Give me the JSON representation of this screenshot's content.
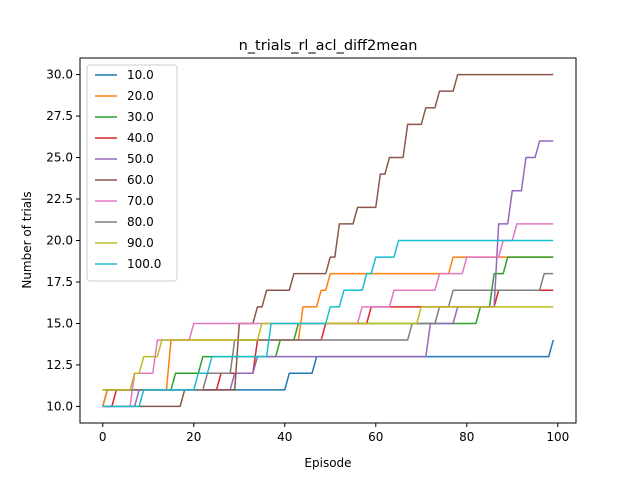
{
  "chart_data": {
    "type": "line",
    "title": "n_trials_rl_acl_diff2mean",
    "xlabel": "Episode",
    "ylabel": "Number of trials",
    "xlim": [
      -5,
      104
    ],
    "ylim": [
      9.0,
      31.0
    ],
    "xticks": [
      0,
      20,
      40,
      60,
      80,
      100
    ],
    "yticks": [
      10.0,
      12.5,
      15.0,
      17.5,
      20.0,
      22.5,
      25.0,
      27.5,
      30.0
    ],
    "legend_position": "upper-left",
    "grid": false,
    "series": [
      {
        "name": "10.0",
        "color": "#1f77b4",
        "points": [
          [
            0,
            10
          ],
          [
            1,
            11
          ],
          [
            18,
            11
          ],
          [
            19,
            11
          ],
          [
            40,
            11
          ],
          [
            41,
            12
          ],
          [
            46,
            12
          ],
          [
            47,
            13
          ],
          [
            71,
            13
          ],
          [
            72,
            13
          ],
          [
            98,
            13
          ],
          [
            99,
            14
          ]
        ]
      },
      {
        "name": "20.0",
        "color": "#ff7f0e",
        "points": [
          [
            0,
            10
          ],
          [
            1,
            11
          ],
          [
            14,
            11
          ],
          [
            15,
            14
          ],
          [
            43,
            14
          ],
          [
            44,
            16
          ],
          [
            47,
            16
          ],
          [
            48,
            17
          ],
          [
            49,
            17
          ],
          [
            50,
            18
          ],
          [
            76,
            18
          ],
          [
            77,
            19
          ],
          [
            83,
            19
          ],
          [
            84,
            19
          ],
          [
            99,
            19
          ]
        ]
      },
      {
        "name": "30.0",
        "color": "#2ca02c",
        "points": [
          [
            0,
            11
          ],
          [
            15,
            11
          ],
          [
            16,
            12
          ],
          [
            21,
            12
          ],
          [
            22,
            13
          ],
          [
            38,
            13
          ],
          [
            39,
            14
          ],
          [
            42,
            14
          ],
          [
            43,
            15
          ],
          [
            82,
            15
          ],
          [
            83,
            16
          ],
          [
            85,
            16
          ],
          [
            86,
            18
          ],
          [
            88,
            18
          ],
          [
            89,
            19
          ],
          [
            99,
            19
          ]
        ]
      },
      {
        "name": "40.0",
        "color": "#d62728",
        "points": [
          [
            0,
            10
          ],
          [
            2,
            10
          ],
          [
            3,
            11
          ],
          [
            25,
            11
          ],
          [
            26,
            12
          ],
          [
            33,
            12
          ],
          [
            34,
            14
          ],
          [
            48,
            14
          ],
          [
            49,
            15
          ],
          [
            58,
            15
          ],
          [
            59,
            16
          ],
          [
            86,
            16
          ],
          [
            87,
            17
          ],
          [
            99,
            17
          ]
        ]
      },
      {
        "name": "50.0",
        "color": "#9467bd",
        "points": [
          [
            0,
            10
          ],
          [
            7,
            10
          ],
          [
            8,
            11
          ],
          [
            28,
            11
          ],
          [
            29,
            12
          ],
          [
            33,
            12
          ],
          [
            34,
            13
          ],
          [
            71,
            13
          ],
          [
            72,
            15
          ],
          [
            77,
            15
          ],
          [
            78,
            16
          ],
          [
            86,
            16
          ],
          [
            87,
            21
          ],
          [
            89,
            21
          ],
          [
            90,
            23
          ],
          [
            92,
            23
          ],
          [
            93,
            25
          ],
          [
            95,
            25
          ],
          [
            96,
            26
          ],
          [
            99,
            26
          ]
        ]
      },
      {
        "name": "60.0",
        "color": "#8c564b",
        "points": [
          [
            0,
            10
          ],
          [
            17,
            10
          ],
          [
            18,
            11
          ],
          [
            29,
            11
          ],
          [
            30,
            15
          ],
          [
            33,
            15
          ],
          [
            34,
            16
          ],
          [
            35,
            16
          ],
          [
            36,
            17
          ],
          [
            41,
            17
          ],
          [
            42,
            18
          ],
          [
            49,
            18
          ],
          [
            50,
            19
          ],
          [
            51,
            19
          ],
          [
            52,
            21
          ],
          [
            55,
            21
          ],
          [
            56,
            22
          ],
          [
            59,
            22
          ],
          [
            60,
            22
          ],
          [
            61,
            24
          ],
          [
            62,
            24
          ],
          [
            63,
            25
          ],
          [
            66,
            25
          ],
          [
            67,
            27
          ],
          [
            70,
            27
          ],
          [
            71,
            28
          ],
          [
            73,
            28
          ],
          [
            74,
            29
          ],
          [
            77,
            29
          ],
          [
            78,
            30
          ],
          [
            99,
            30
          ]
        ]
      },
      {
        "name": "70.0",
        "color": "#e377c2",
        "points": [
          [
            0,
            10
          ],
          [
            6,
            10
          ],
          [
            7,
            12
          ],
          [
            11,
            12
          ],
          [
            12,
            14
          ],
          [
            19,
            14
          ],
          [
            20,
            15
          ],
          [
            56,
            15
          ],
          [
            57,
            16
          ],
          [
            63,
            16
          ],
          [
            64,
            17
          ],
          [
            73,
            17
          ],
          [
            74,
            18
          ],
          [
            79,
            18
          ],
          [
            80,
            19
          ],
          [
            84,
            19
          ],
          [
            85,
            19
          ],
          [
            87,
            19
          ],
          [
            88,
            20
          ],
          [
            90,
            20
          ],
          [
            91,
            21
          ],
          [
            99,
            21
          ]
        ]
      },
      {
        "name": "80.0",
        "color": "#7f7f7f",
        "points": [
          [
            0,
            11
          ],
          [
            19,
            11
          ],
          [
            20,
            11
          ],
          [
            22,
            11
          ],
          [
            23,
            12
          ],
          [
            28,
            12
          ],
          [
            29,
            14
          ],
          [
            32,
            14
          ],
          [
            33,
            14
          ],
          [
            67,
            14
          ],
          [
            68,
            15
          ],
          [
            73,
            15
          ],
          [
            74,
            16
          ],
          [
            76,
            16
          ],
          [
            77,
            17
          ],
          [
            96,
            17
          ],
          [
            97,
            18
          ],
          [
            99,
            18
          ]
        ]
      },
      {
        "name": "90.0",
        "color": "#bcbd22",
        "points": [
          [
            0,
            11
          ],
          [
            6,
            11
          ],
          [
            7,
            12
          ],
          [
            8,
            12
          ],
          [
            9,
            13
          ],
          [
            12,
            13
          ],
          [
            13,
            14
          ],
          [
            34,
            14
          ],
          [
            35,
            15
          ],
          [
            69,
            15
          ],
          [
            70,
            16
          ],
          [
            99,
            16
          ]
        ]
      },
      {
        "name": "100.0",
        "color": "#17becf",
        "points": [
          [
            0,
            10
          ],
          [
            8,
            10
          ],
          [
            9,
            11
          ],
          [
            20,
            11
          ],
          [
            21,
            12
          ],
          [
            23,
            12
          ],
          [
            24,
            13
          ],
          [
            36,
            13
          ],
          [
            37,
            15
          ],
          [
            49,
            15
          ],
          [
            50,
            16
          ],
          [
            52,
            16
          ],
          [
            53,
            17
          ],
          [
            57,
            17
          ],
          [
            58,
            18
          ],
          [
            59,
            18
          ],
          [
            60,
            19
          ],
          [
            64,
            19
          ],
          [
            65,
            20
          ],
          [
            99,
            20
          ]
        ]
      }
    ]
  }
}
